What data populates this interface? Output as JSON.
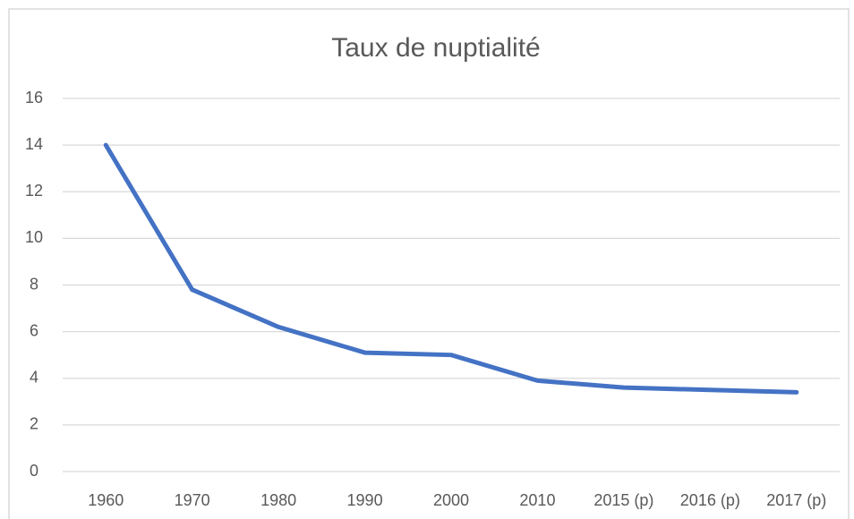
{
  "chart_data": {
    "type": "line",
    "title": "Taux de nuptialité",
    "categories": [
      "1960",
      "1970",
      "1980",
      "1990",
      "2000",
      "2010",
      "2015 (p)",
      "2016 (p)",
      "2017 (p)"
    ],
    "series": [
      {
        "name": "Taux de nuptialité",
        "color": "#4472c4",
        "values": [
          14,
          7.8,
          6.2,
          5.1,
          5.0,
          3.9,
          3.6,
          3.5,
          3.4
        ]
      }
    ],
    "ylim": [
      0,
      16
    ],
    "yticks": [
      0,
      2,
      4,
      6,
      8,
      10,
      12,
      14,
      16
    ],
    "grid": true,
    "legend": false
  }
}
